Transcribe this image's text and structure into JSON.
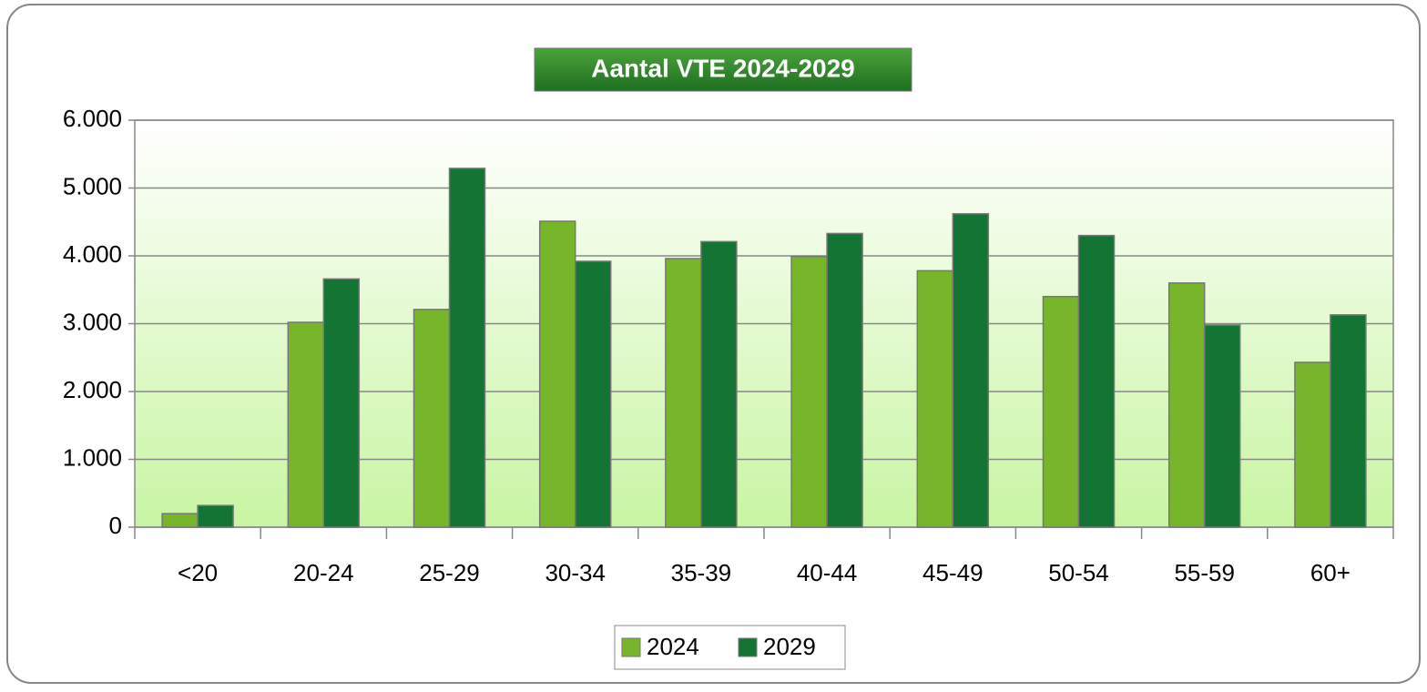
{
  "chart_data": {
    "type": "bar",
    "title": "Aantal VTE 2024-2029",
    "categories": [
      "<20",
      "20-24",
      "25-29",
      "30-34",
      "35-39",
      "40-44",
      "45-49",
      "50-54",
      "55-59",
      "60+"
    ],
    "series": [
      {
        "name": "2024",
        "color": "#77b52a",
        "values": [
          200,
          3020,
          3210,
          4510,
          3960,
          3990,
          3780,
          3400,
          3600,
          2430
        ]
      },
      {
        "name": "2029",
        "color": "#137434",
        "values": [
          320,
          3660,
          5290,
          3920,
          4210,
          4330,
          4620,
          4300,
          2980,
          3130
        ]
      }
    ],
    "ylim": [
      0,
      6000
    ],
    "yticks": [
      0,
      {
        "value": 1000,
        "label": "1.000"
      },
      {
        "value": 2000,
        "label": "2.000"
      },
      {
        "value": 3000,
        "label": "3.000"
      },
      {
        "value": 4000,
        "label": "4.000"
      },
      {
        "value": 5000,
        "label": "5.000"
      },
      {
        "value": 6000,
        "label": "6.000"
      }
    ],
    "grid": true,
    "legend": "bottom"
  }
}
